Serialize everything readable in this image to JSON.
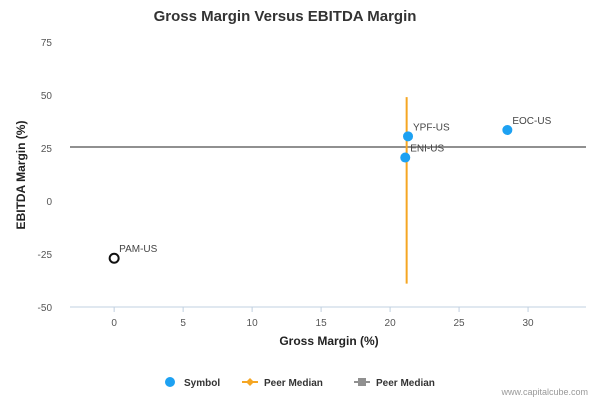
{
  "chart_data": {
    "type": "scatter",
    "title": "Gross Margin Versus EBITDA Margin",
    "xlabel": "Gross Margin (%)",
    "ylabel": "EBITDA Margin (%)",
    "xlim": [
      -3.2,
      34.2
    ],
    "ylim": [
      -50,
      75
    ],
    "x_ticks": [
      0,
      5,
      10,
      15,
      20,
      25,
      30
    ],
    "y_ticks": [
      -50,
      -25,
      0,
      25,
      50,
      75
    ],
    "grid": false,
    "legend_position": "bottom",
    "points": [
      {
        "label": "YPF-US",
        "x": 21.3,
        "y": 30.5,
        "style": "filled"
      },
      {
        "label": "ENI-US",
        "x": 21.1,
        "y": 20.5,
        "style": "filled"
      },
      {
        "label": "EOC-US",
        "x": 28.5,
        "y": 33.5,
        "style": "filled"
      },
      {
        "label": "PAM-US",
        "x": 0.0,
        "y": -27.0,
        "style": "hollow"
      }
    ],
    "peer_median_x": 21.2,
    "peer_median_x_range": [
      -39,
      49
    ],
    "peer_median_y": 25.5,
    "legend": [
      {
        "label": "Symbol",
        "marker": "circle"
      },
      {
        "label": "Peer Median",
        "marker": "diamond-line"
      },
      {
        "label": "Peer Median",
        "marker": "square-line"
      }
    ],
    "colors": {
      "symbol": "#1da1f2",
      "hollow_stroke": "#111111",
      "median_vertical": "#f5a623",
      "median_horizontal": "#909090",
      "axis": "#c0d0e0"
    }
  },
  "credit": "www.capitalcube.com"
}
